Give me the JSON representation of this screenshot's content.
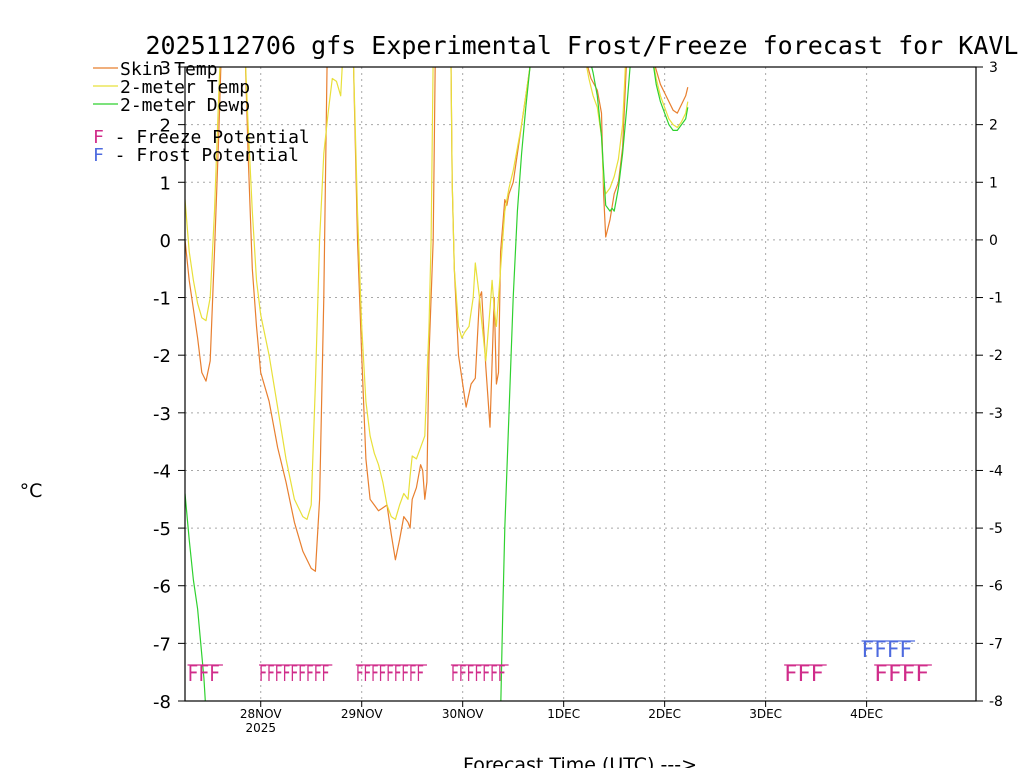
{
  "chart_data": {
    "type": "line",
    "title": "2025112706 gfs Experimental Frost/Freeze forecast for KAVL",
    "xlabel": "Forecast Time (UTC) --->",
    "ylabel": "°C",
    "ylim": [
      -8,
      3
    ],
    "xlim": [
      0,
      188
    ],
    "yticks": [
      "-8",
      "-7",
      "-6",
      "-5",
      "-4",
      "-3",
      "-2",
      "-1",
      "0",
      "1",
      "2",
      "3"
    ],
    "xticks": [
      {
        "h": 18,
        "label": "28NOV",
        "sub": "2025"
      },
      {
        "h": 42,
        "label": "29NOV",
        "sub": ""
      },
      {
        "h": 66,
        "label": "30NOV",
        "sub": ""
      },
      {
        "h": 90,
        "label": "1DEC",
        "sub": ""
      },
      {
        "h": 114,
        "label": "2DEC",
        "sub": ""
      },
      {
        "h": 138,
        "label": "3DEC",
        "sub": ""
      },
      {
        "h": 162,
        "label": "4DEC",
        "sub": ""
      }
    ],
    "grid": true,
    "series": [
      {
        "name": "Skin Temp",
        "color": "#e87f2f",
        "points": [
          [
            0,
            0
          ],
          [
            1,
            -0.7
          ],
          [
            2,
            -1.2
          ],
          [
            3,
            -1.7
          ],
          [
            4,
            -2.3
          ],
          [
            5,
            -2.45
          ],
          [
            6,
            -2.1
          ],
          [
            7,
            -0.2
          ],
          [
            8,
            1.8
          ],
          [
            8.6,
            3.2
          ],
          [
            14.3,
            3.2
          ],
          [
            15,
            1.5
          ],
          [
            16,
            -0.5
          ],
          [
            17,
            -1.5
          ],
          [
            18,
            -2.3
          ],
          [
            20,
            -2.8
          ],
          [
            22,
            -3.6
          ],
          [
            24,
            -4.2
          ],
          [
            26,
            -4.9
          ],
          [
            28,
            -5.4
          ],
          [
            30,
            -5.7
          ],
          [
            31,
            -5.75
          ],
          [
            32,
            -4.5
          ],
          [
            33,
            -1
          ],
          [
            33.8,
            3.2
          ],
          [
            40,
            3.2
          ],
          [
            41,
            0
          ],
          [
            42,
            -2
          ],
          [
            43,
            -3.8
          ],
          [
            44,
            -4.5
          ],
          [
            45,
            -4.6
          ],
          [
            46,
            -4.7
          ],
          [
            47,
            -4.65
          ],
          [
            48,
            -4.6
          ],
          [
            49,
            -5.1
          ],
          [
            50,
            -5.55
          ],
          [
            51,
            -5.2
          ],
          [
            52,
            -4.8
          ],
          [
            53,
            -4.9
          ],
          [
            53.5,
            -5
          ],
          [
            54,
            -4.5
          ],
          [
            55,
            -4.3
          ],
          [
            56,
            -3.9
          ],
          [
            56.5,
            -4
          ],
          [
            57,
            -4.5
          ],
          [
            57.5,
            -4.2
          ],
          [
            58,
            -2
          ],
          [
            59,
            0
          ],
          [
            59.5,
            3.2
          ],
          [
            63.2,
            3.2
          ],
          [
            63.5,
            1
          ],
          [
            64,
            -0.5
          ],
          [
            65,
            -2
          ],
          [
            66,
            -2.5
          ],
          [
            66.8,
            -2.9
          ],
          [
            68,
            -2.5
          ],
          [
            69,
            -2.4
          ],
          [
            70,
            -1
          ],
          [
            70.5,
            -0.9
          ],
          [
            71.5,
            -2.2
          ],
          [
            72.5,
            -3.25
          ],
          [
            73.5,
            -1
          ],
          [
            74,
            -2.5
          ],
          [
            74.5,
            -2.3
          ],
          [
            75,
            -0.2
          ],
          [
            76,
            0.7
          ],
          [
            76.5,
            0.6
          ],
          [
            77,
            0.8
          ],
          [
            78,
            1
          ],
          [
            79,
            1.5
          ],
          [
            80,
            2
          ],
          [
            81,
            2.5
          ],
          [
            82,
            3
          ],
          [
            83,
            3.2
          ],
          [
            95,
            3.2
          ],
          [
            96.5,
            2.8
          ],
          [
            98,
            2.6
          ],
          [
            99,
            2.2
          ],
          [
            99.5,
            0.8
          ],
          [
            100,
            0.05
          ],
          [
            101,
            0.35
          ],
          [
            102,
            0.8
          ],
          [
            103,
            1
          ],
          [
            104,
            1.6
          ],
          [
            105,
            3.2
          ],
          [
            111,
            3.2
          ],
          [
            112,
            2.95
          ],
          [
            113,
            2.7
          ],
          [
            114,
            2.55
          ],
          [
            115,
            2.4
          ],
          [
            116,
            2.25
          ],
          [
            117,
            2.2
          ],
          [
            118,
            2.35
          ],
          [
            119,
            2.5
          ],
          [
            119.5,
            2.65
          ]
        ]
      },
      {
        "name": "2-meter Temp",
        "color": "#e8e03a",
        "points": [
          [
            0,
            0.7
          ],
          [
            1,
            -0.2
          ],
          [
            2,
            -0.7
          ],
          [
            3,
            -1.1
          ],
          [
            4,
            -1.35
          ],
          [
            5,
            -1.4
          ],
          [
            6,
            -1
          ],
          [
            7,
            0.5
          ],
          [
            8,
            2.5
          ],
          [
            8.4,
            3.2
          ],
          [
            14.3,
            3.2
          ],
          [
            15,
            2
          ],
          [
            16,
            0.5
          ],
          [
            17,
            -0.7
          ],
          [
            18,
            -1.3
          ],
          [
            20,
            -2
          ],
          [
            22,
            -2.9
          ],
          [
            24,
            -3.8
          ],
          [
            26,
            -4.5
          ],
          [
            28,
            -4.8
          ],
          [
            29,
            -4.85
          ],
          [
            30,
            -4.6
          ],
          [
            31,
            -2.5
          ],
          [
            32,
            0
          ],
          [
            33,
            1.5
          ],
          [
            34,
            2.2
          ],
          [
            35,
            2.8
          ],
          [
            36,
            2.75
          ],
          [
            37,
            2.5
          ],
          [
            37.5,
            3.2
          ],
          [
            40,
            3.2
          ],
          [
            41,
            0.5
          ],
          [
            42,
            -1.5
          ],
          [
            43,
            -2.8
          ],
          [
            44,
            -3.4
          ],
          [
            45,
            -3.7
          ],
          [
            46,
            -3.9
          ],
          [
            47,
            -4.2
          ],
          [
            48,
            -4.6
          ],
          [
            49,
            -4.8
          ],
          [
            50,
            -4.85
          ],
          [
            51,
            -4.6
          ],
          [
            52,
            -4.4
          ],
          [
            53,
            -4.5
          ],
          [
            53.5,
            -4.1
          ],
          [
            54,
            -3.75
          ],
          [
            55,
            -3.8
          ],
          [
            56,
            -3.6
          ],
          [
            57,
            -3.4
          ],
          [
            58,
            -1.5
          ],
          [
            58.5,
            0
          ],
          [
            59,
            3.2
          ],
          [
            63.2,
            3.2
          ],
          [
            63.5,
            1
          ],
          [
            64,
            -0.5
          ],
          [
            65,
            -1.5
          ],
          [
            65.8,
            -1.7
          ],
          [
            66.5,
            -1.6
          ],
          [
            67.5,
            -1.5
          ],
          [
            68.5,
            -1
          ],
          [
            69,
            -0.4
          ],
          [
            70,
            -1
          ],
          [
            70.5,
            -1.4
          ],
          [
            71.5,
            -2.1
          ],
          [
            72.5,
            -1.2
          ],
          [
            73,
            -0.7
          ],
          [
            73.5,
            -1.2
          ],
          [
            74,
            -1.5
          ],
          [
            75,
            -0.5
          ],
          [
            76,
            0.5
          ],
          [
            77,
            0.9
          ],
          [
            78,
            1.2
          ],
          [
            79,
            1.6
          ],
          [
            80,
            2
          ],
          [
            81,
            2.5
          ],
          [
            82,
            3
          ],
          [
            83,
            3.2
          ],
          [
            95,
            3.2
          ],
          [
            96,
            2.8
          ],
          [
            97,
            2.5
          ],
          [
            98,
            2.3
          ],
          [
            99,
            1.8
          ],
          [
            99.5,
            1
          ],
          [
            100,
            0.8
          ],
          [
            101,
            0.9
          ],
          [
            102,
            1.1
          ],
          [
            103,
            1.4
          ],
          [
            104,
            2
          ],
          [
            104.8,
            3.2
          ],
          [
            111,
            3.2
          ],
          [
            112,
            2.8
          ],
          [
            113,
            2.5
          ],
          [
            114,
            2.3
          ],
          [
            115,
            2.1
          ],
          [
            116,
            2
          ],
          [
            117,
            1.95
          ],
          [
            118,
            2.05
          ],
          [
            119,
            2.2
          ],
          [
            119.5,
            2.4
          ]
        ]
      },
      {
        "name": "2-meter Dewp",
        "color": "#2fd12f",
        "points": [
          [
            0,
            -4.4
          ],
          [
            1,
            -5.2
          ],
          [
            2,
            -5.9
          ],
          [
            3,
            -6.4
          ],
          [
            4,
            -7.2
          ],
          [
            4.5,
            -7.6
          ],
          [
            5,
            -8.2
          ],
          [
            75,
            -8.2
          ],
          [
            75.5,
            -6.5
          ],
          [
            76,
            -5
          ],
          [
            77,
            -3
          ],
          [
            78,
            -1
          ],
          [
            79,
            0.5
          ],
          [
            80,
            1.5
          ],
          [
            81,
            2.3
          ],
          [
            82,
            3
          ],
          [
            82.5,
            3.2
          ],
          [
            96,
            3.2
          ],
          [
            97,
            2.9
          ],
          [
            98,
            2.5
          ],
          [
            99,
            1.8
          ],
          [
            100,
            0.6
          ],
          [
            101,
            0.5
          ],
          [
            101.5,
            0.55
          ],
          [
            102,
            0.5
          ],
          [
            103,
            0.9
          ],
          [
            104,
            1.5
          ],
          [
            105,
            2.3
          ],
          [
            106,
            3.2
          ],
          [
            111,
            3.2
          ],
          [
            112,
            2.7
          ],
          [
            113,
            2.4
          ],
          [
            114,
            2.2
          ],
          [
            115,
            2
          ],
          [
            116,
            1.9
          ],
          [
            117,
            1.9
          ],
          [
            118,
            2
          ],
          [
            119,
            2.1
          ],
          [
            119.5,
            2.3
          ]
        ]
      }
    ],
    "legend": {
      "position": "top-left",
      "entries": [
        {
          "label": "Skin Temp",
          "color": "#e87f2f",
          "kind": "line"
        },
        {
          "label": "2-meter Temp",
          "color": "#e8e03a",
          "kind": "line"
        },
        {
          "label": "2-meter Dewp",
          "color": "#2fd12f",
          "kind": "line"
        },
        {
          "letter": "F",
          "label": " - Freeze Potential",
          "color": "#d02c8a",
          "kind": "letter"
        },
        {
          "letter": "F",
          "label": " - Frost Potential",
          "color": "#4d6adf",
          "kind": "letter"
        }
      ]
    },
    "freeze_markers": {
      "color": "#d02c8a",
      "groups": [
        {
          "h_start": 0.6,
          "h_end": 8.3,
          "text": "FFF"
        },
        {
          "h_start": 17.6,
          "h_end": 34.3,
          "text": "FFFFFFFFF"
        },
        {
          "h_start": 40.6,
          "h_end": 56.8,
          "text": "FFFFFFFFF"
        },
        {
          "h_start": 63.2,
          "h_end": 76.2,
          "text": "FFFFFFF"
        },
        {
          "h_start": 142.4,
          "h_end": 151.8,
          "text": "FFF"
        },
        {
          "h_start": 163.8,
          "h_end": 176.8,
          "text": "FFFF"
        }
      ]
    },
    "frost_markers": {
      "color": "#4d6adf",
      "groups": [
        {
          "h_start": 160.8,
          "h_end": 172.8,
          "text": "FFFF"
        }
      ]
    }
  }
}
